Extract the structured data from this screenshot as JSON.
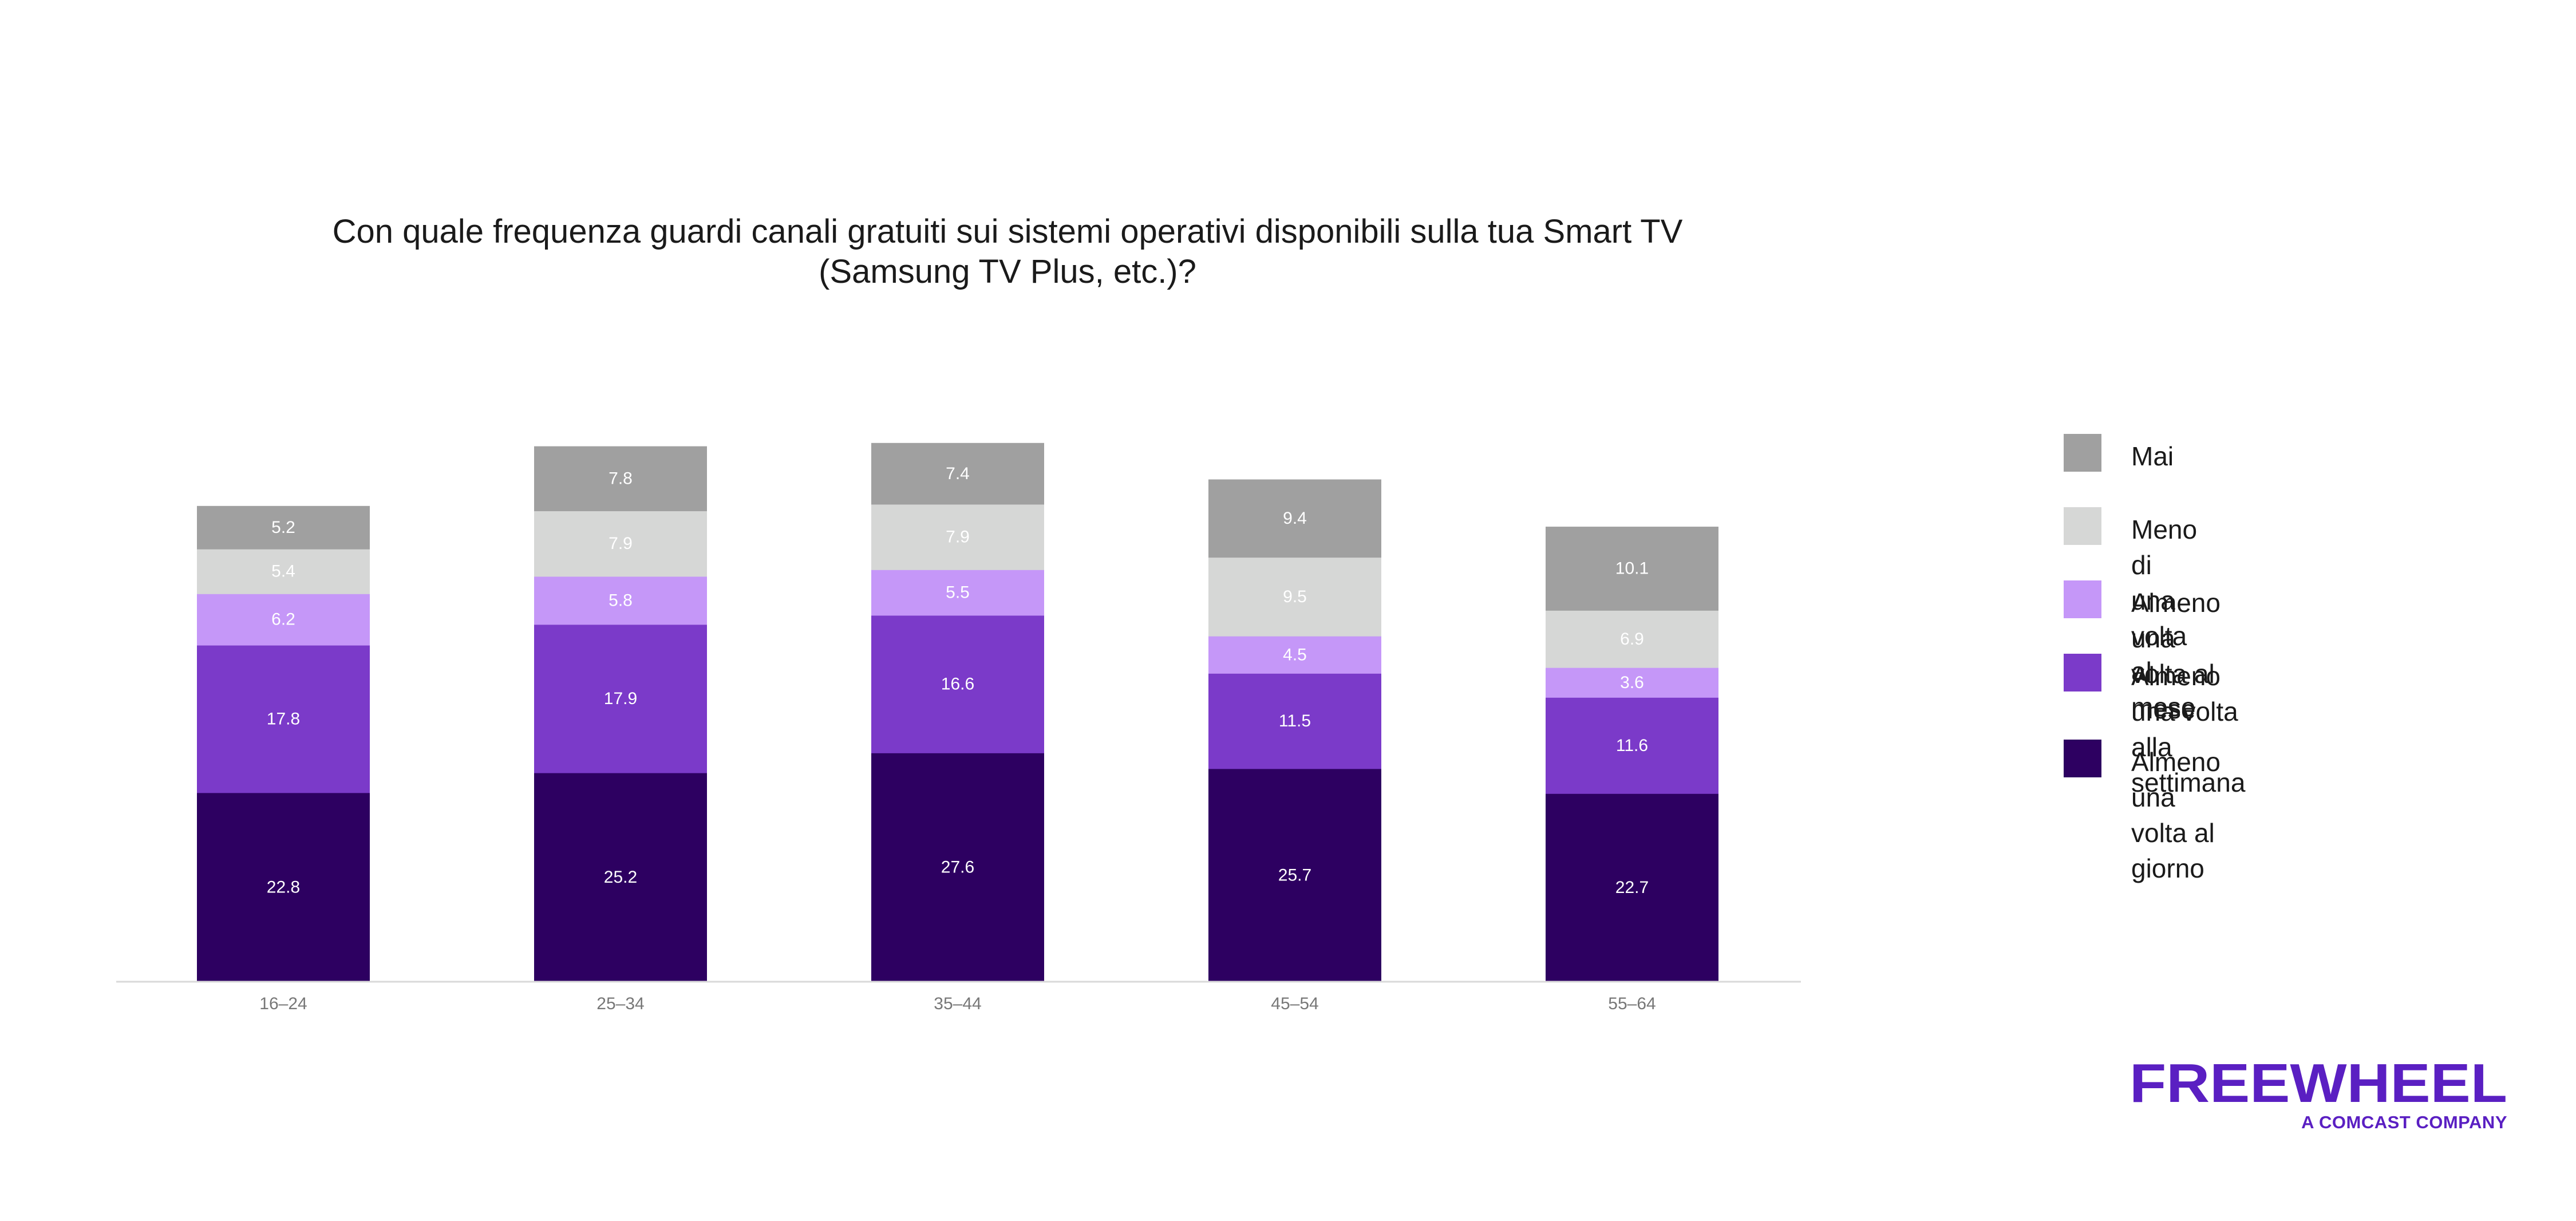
{
  "chart_data": {
    "type": "bar",
    "stacked": true,
    "title_lines": [
      "Con quale frequenza guardi canali gratuiti sui sistemi operativi disponibili sulla tua Smart TV",
      "(Samsung TV Plus, etc.)?"
    ],
    "categories": [
      "16–24",
      "25–34",
      "35–44",
      "45–54",
      "55–64"
    ],
    "series": [
      {
        "name": "Almeno una volta al giorno",
        "color": "#2d0061",
        "label_color": "#ffffff",
        "values": [
          22.8,
          25.2,
          27.6,
          25.7,
          22.7
        ]
      },
      {
        "name": "Almeno una volta\nalla settimana",
        "color": "#7b3ac9",
        "label_color": "#ffffff",
        "values": [
          17.8,
          17.9,
          16.6,
          11.5,
          11.6
        ]
      },
      {
        "name": "Almeno una volta al mese",
        "color": "#c597f8",
        "label_color": "#ffffff",
        "values": [
          6.2,
          5.8,
          5.5,
          4.5,
          3.6
        ]
      },
      {
        "name": "Meno di una volta al mese",
        "color": "#d6d7d6",
        "label_color": "#ffffff",
        "values": [
          5.4,
          7.9,
          7.9,
          9.5,
          6.9
        ]
      },
      {
        "name": "Mai",
        "color": "#a0a0a0",
        "label_color": "#ffffff",
        "values": [
          5.2,
          7.8,
          7.4,
          9.4,
          10.1
        ]
      }
    ],
    "legend_order": [
      "Mai",
      "Meno di una volta al mese",
      "Almeno una volta al mese",
      "Almeno una volta\nalla settimana",
      "Almeno una volta al giorno"
    ],
    "legend_position": "right",
    "xlabel": "",
    "ylabel": "",
    "ylim": [
      0,
      75
    ],
    "grid": false
  },
  "brand": {
    "logo_text": "FREEWHEEL",
    "tagline": "A COMCAST COMPANY",
    "color": "#5a1fc2"
  }
}
